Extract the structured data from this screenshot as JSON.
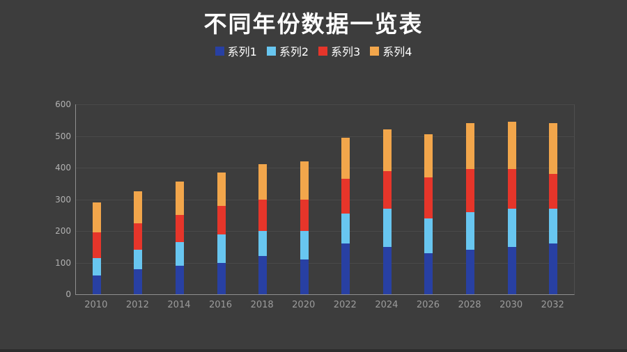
{
  "page": {
    "background_color": "#3D3D3D",
    "bottom_bar_color": "#2D2D2D",
    "title_color": "#FFFFFF",
    "gridline_color": "#4A4A4A",
    "axis_line_color": "#909090",
    "y_label_color": "#B2B2B2",
    "x_label_color": "#9C9C9C"
  },
  "title": "不同年份数据一览表",
  "chart_data": {
    "type": "bar",
    "variant": "stacked-vertical",
    "title": "不同年份数据一览表",
    "xlabel": "",
    "ylabel": "",
    "categories": [
      "2010",
      "2012",
      "2014",
      "2016",
      "2018",
      "2020",
      "2022",
      "2024",
      "2026",
      "2028",
      "2030",
      "2032"
    ],
    "series": [
      {
        "name": "系列1",
        "color": "#2840A3",
        "values": [
          60,
          80,
          90,
          100,
          120,
          110,
          160,
          150,
          130,
          140,
          150,
          160
        ]
      },
      {
        "name": "系列2",
        "color": "#68C6F0",
        "values": [
          55,
          60,
          75,
          90,
          80,
          90,
          95,
          120,
          110,
          120,
          120,
          110
        ]
      },
      {
        "name": "系列3",
        "color": "#E6352A",
        "values": [
          80,
          85,
          85,
          90,
          100,
          100,
          110,
          120,
          130,
          135,
          125,
          110
        ]
      },
      {
        "name": "系列4",
        "color": "#F2A64B",
        "values": [
          95,
          100,
          105,
          105,
          110,
          120,
          130,
          130,
          135,
          145,
          150,
          160
        ]
      }
    ],
    "totals": [
      290,
      325,
      355,
      385,
      410,
      420,
      495,
      520,
      505,
      540,
      545,
      540
    ],
    "ylim": [
      0,
      600
    ],
    "yticks": [
      0,
      100,
      200,
      300,
      400,
      500,
      600
    ],
    "grid": true,
    "legend_position": "top"
  }
}
